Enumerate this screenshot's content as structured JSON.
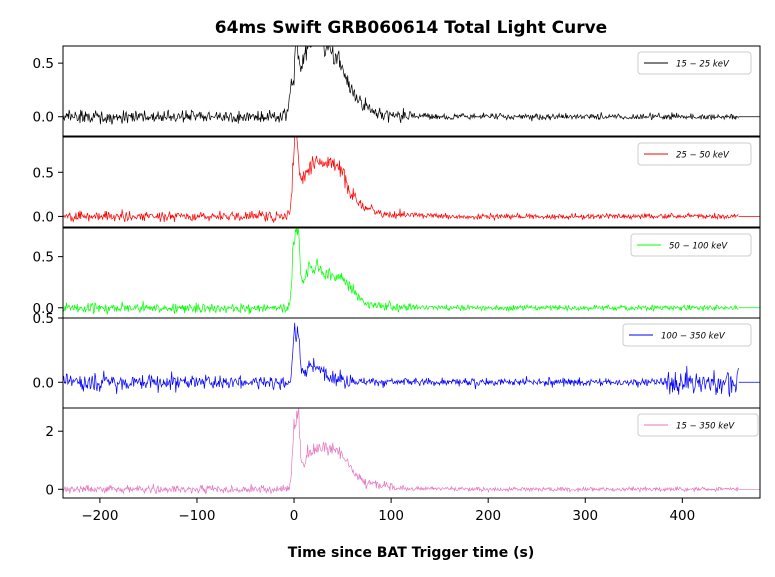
{
  "chart_data": {
    "type": "line",
    "title": "64ms Swift GRB060614 Total Light Curve",
    "xlabel": "Time since BAT Trigger time (s)",
    "xlim": [
      -238,
      480
    ],
    "x_ticks": [
      -200,
      -100,
      0,
      100,
      200,
      300,
      400
    ],
    "x_tick_labels": [
      "−200",
      "−100",
      "0",
      "100",
      "200",
      "300",
      "400"
    ],
    "data_range": [
      -238,
      458
    ],
    "series": [
      {
        "name": "15 − 25 keV",
        "color": "#000000",
        "ylim": [
          -0.18,
          0.66
        ],
        "yticks": [
          0.0,
          0.5
        ],
        "ytick_labels": [
          "0.0",
          "0.5"
        ],
        "noise": 0.04,
        "peaks": [
          [
            -3,
            0.3
          ],
          [
            2,
            0.58
          ],
          [
            12,
            0.35
          ],
          [
            20,
            0.42
          ],
          [
            30,
            0.38
          ],
          [
            42,
            0.35
          ],
          [
            52,
            0.22
          ],
          [
            70,
            0.1
          ]
        ],
        "tail_level": 0.0
      },
      {
        "name": "25 − 50 keV",
        "color": "#ff0000",
        "ylim": [
          -0.12,
          0.9
        ],
        "yticks": [
          0.0,
          0.5
        ],
        "ytick_labels": [
          "0.0",
          "0.5"
        ],
        "noise": 0.04,
        "peaks": [
          [
            0,
            0.85
          ],
          [
            3,
            0.82
          ],
          [
            12,
            0.3
          ],
          [
            22,
            0.38
          ],
          [
            35,
            0.36
          ],
          [
            45,
            0.36
          ],
          [
            55,
            0.2
          ],
          [
            75,
            0.08
          ]
        ],
        "tail_level": 0.0
      },
      {
        "name": "50 − 100 keV",
        "color": "#00ff00",
        "ylim": [
          -0.1,
          0.78
        ],
        "yticks": [
          0.0,
          0.5
        ],
        "ytick_labels": [
          "0.0",
          "0.5"
        ],
        "noise": 0.035,
        "peaks": [
          [
            0,
            0.72
          ],
          [
            4,
            0.76
          ],
          [
            12,
            0.2
          ],
          [
            22,
            0.25
          ],
          [
            35,
            0.2
          ],
          [
            48,
            0.2
          ],
          [
            60,
            0.1
          ]
        ],
        "tail_level": 0.0
      },
      {
        "name": "100 − 350 keV",
        "color": "#0000ff",
        "ylim": [
          -0.2,
          0.5
        ],
        "yticks": [
          0.0,
          0.5
        ],
        "ytick_labels": [
          "0.0",
          "0.5"
        ],
        "noise": 0.04,
        "peaks": [
          [
            0,
            0.35
          ],
          [
            4,
            0.45
          ],
          [
            15,
            0.1
          ],
          [
            30,
            0.08
          ]
        ],
        "tail_level": 0.0
      },
      {
        "name": "15 − 350 keV",
        "color": "#e377c2",
        "ylim": [
          -0.3,
          2.8
        ],
        "yticks": [
          0,
          2
        ],
        "ytick_labels": [
          "0",
          "2"
        ],
        "noise": 0.1,
        "peaks": [
          [
            0,
            2.1
          ],
          [
            4,
            2.7
          ],
          [
            15,
            0.8
          ],
          [
            25,
            0.9
          ],
          [
            38,
            0.85
          ],
          [
            48,
            0.8
          ],
          [
            60,
            0.4
          ],
          [
            85,
            0.15
          ]
        ],
        "tail_level": 0.0
      }
    ]
  }
}
